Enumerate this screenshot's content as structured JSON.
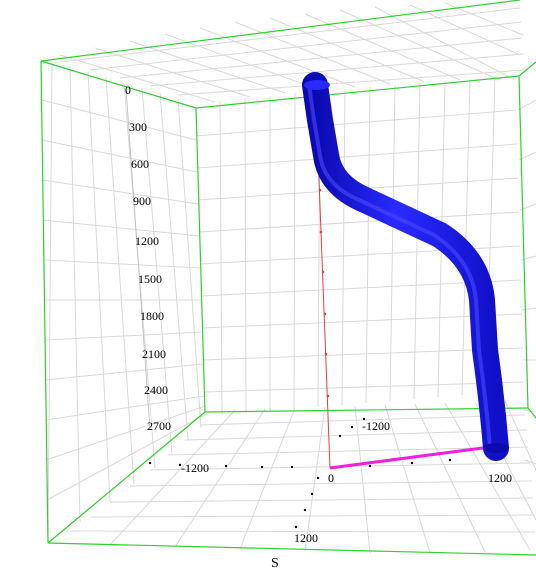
{
  "scene": {
    "depth_labels": [
      "0",
      "300",
      "600",
      "900",
      "1200",
      "1500",
      "1800",
      "2100",
      "2400",
      "2700"
    ],
    "floor_labels": {
      "origin": "0",
      "north_neg": "-1200",
      "east_neg": "-1200",
      "east_pos": "1200",
      "south_pos": "1200",
      "south_axis": "S"
    },
    "colors": {
      "background": "#ffffff",
      "grid": "#d9d9d9",
      "box_edges": "#2fd12f",
      "wellbore": "#1a1aee",
      "vertical_reference": "#e04040",
      "horizontal_displacement": "#ee22dd"
    }
  }
}
